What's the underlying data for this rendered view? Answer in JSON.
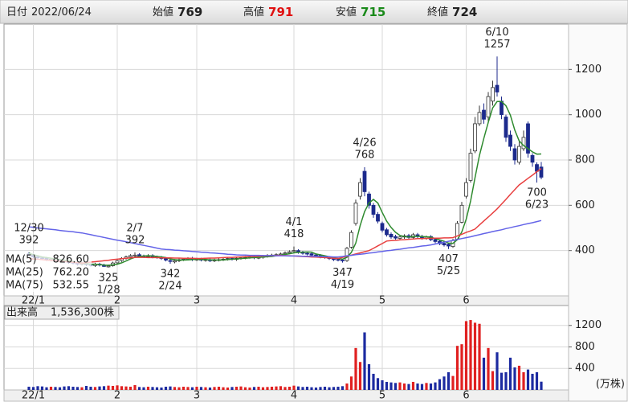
{
  "chart_data": [
    {
      "type": "candlestick",
      "info": [
        {
          "label": "日付",
          "value": "2022/06/24",
          "color": "#222222"
        },
        {
          "label": "始値",
          "value": 769,
          "color": "#222222"
        },
        {
          "label": "高値",
          "value": 791,
          "color": "#e01010"
        },
        {
          "label": "安値",
          "value": 715,
          "color": "#1a8a1a"
        },
        {
          "label": "終値",
          "value": 724,
          "color": "#222222"
        }
      ],
      "categories": [
        null,
        "22/1",
        null,
        null,
        null,
        null,
        null,
        null,
        null,
        null,
        null,
        null,
        null,
        null,
        null,
        null,
        null,
        null,
        null,
        null,
        "2",
        null,
        null,
        null,
        null,
        null,
        null,
        null,
        null,
        null,
        null,
        null,
        null,
        null,
        null,
        null,
        null,
        null,
        "3",
        null,
        null,
        null,
        null,
        null,
        null,
        null,
        null,
        null,
        null,
        null,
        null,
        null,
        null,
        null,
        null,
        null,
        null,
        null,
        null,
        null,
        "4",
        null,
        null,
        null,
        null,
        null,
        null,
        null,
        null,
        null,
        null,
        null,
        null,
        null,
        null,
        null,
        null,
        null,
        null,
        null,
        "5",
        null,
        null,
        null,
        null,
        null,
        null,
        null,
        null,
        null,
        null,
        null,
        null,
        null,
        null,
        null,
        null,
        null,
        null,
        "6",
        null,
        null,
        null,
        null,
        null,
        null,
        null,
        null,
        null,
        null,
        null,
        null,
        null,
        null,
        null,
        null,
        null
      ],
      "open": [
        386,
        380,
        372,
        368,
        366,
        358,
        362,
        358,
        355,
        350,
        348,
        345,
        340,
        343,
        338,
        334,
        340,
        336,
        328,
        333,
        346,
        356,
        366,
        372,
        378,
        382,
        376,
        373,
        378,
        372,
        370,
        364,
        356,
        350,
        355,
        360,
        362,
        366,
        360,
        362,
        357,
        360,
        355,
        358,
        360,
        362,
        366,
        361,
        366,
        368,
        370,
        373,
        368,
        370,
        375,
        378,
        380,
        383,
        386,
        390,
        396,
        400,
        393,
        388,
        386,
        381,
        378,
        373,
        370,
        366,
        361,
        358,
        356,
        415,
        520,
        640,
        750,
        650,
        600,
        560,
        520,
        492,
        472,
        462,
        454,
        460,
        466,
        458,
        470,
        463,
        454,
        462,
        449,
        441,
        432,
        428,
        418,
        450,
        525,
        640,
        710,
        840,
        960,
        1020,
        990,
        1060,
        1130,
        1060,
        990,
        910,
        850,
        790,
        850,
        960,
        820,
        780,
        769
      ],
      "high": [
        392,
        386,
        378,
        374,
        372,
        368,
        368,
        364,
        361,
        356,
        354,
        351,
        349,
        349,
        344,
        346,
        346,
        342,
        338,
        351,
        361,
        371,
        378,
        384,
        392,
        388,
        382,
        384,
        384,
        378,
        376,
        370,
        362,
        361,
        366,
        368,
        371,
        372,
        368,
        368,
        366,
        366,
        364,
        366,
        368,
        371,
        372,
        372,
        374,
        376,
        378,
        379,
        376,
        381,
        384,
        386,
        388,
        391,
        396,
        401,
        418,
        406,
        399,
        394,
        392,
        387,
        384,
        379,
        376,
        372,
        367,
        364,
        416,
        490,
        625,
        720,
        768,
        660,
        610,
        570,
        528,
        500,
        480,
        470,
        468,
        472,
        474,
        478,
        478,
        470,
        466,
        468,
        455,
        447,
        438,
        434,
        452,
        530,
        615,
        720,
        850,
        990,
        1040,
        1050,
        1100,
        1150,
        1257,
        1080,
        1000,
        930,
        870,
        880,
        930,
        970,
        830,
        790,
        791
      ],
      "low": [
        374,
        366,
        362,
        360,
        354,
        352,
        352,
        349,
        344,
        342,
        339,
        334,
        334,
        332,
        329,
        328,
        330,
        328,
        325,
        329,
        340,
        350,
        360,
        366,
        372,
        370,
        368,
        367,
        366,
        364,
        359,
        352,
        342,
        344,
        349,
        354,
        356,
        354,
        354,
        352,
        351,
        349,
        349,
        352,
        354,
        356,
        356,
        355,
        360,
        362,
        364,
        362,
        362,
        364,
        369,
        372,
        374,
        377,
        380,
        384,
        390,
        386,
        382,
        379,
        374,
        372,
        366,
        364,
        359,
        354,
        352,
        347,
        350,
        408,
        510,
        625,
        640,
        585,
        545,
        520,
        480,
        462,
        452,
        448,
        448,
        452,
        450,
        452,
        455,
        448,
        448,
        442,
        432,
        424,
        418,
        407,
        412,
        445,
        520,
        630,
        700,
        830,
        950,
        960,
        970,
        1040,
        1080,
        980,
        880,
        840,
        780,
        780,
        840,
        810,
        770,
        700,
        715
      ],
      "close": [
        380,
        372,
        368,
        366,
        360,
        362,
        358,
        355,
        350,
        348,
        345,
        340,
        343,
        338,
        335,
        340,
        336,
        330,
        332,
        345,
        355,
        365,
        372,
        378,
        380,
        376,
        374,
        378,
        372,
        370,
        365,
        358,
        352,
        355,
        360,
        362,
        365,
        360,
        362,
        358,
        360,
        355,
        358,
        360,
        362,
        365,
        362,
        366,
        368,
        370,
        372,
        368,
        370,
        375,
        378,
        380,
        382,
        385,
        390,
        395,
        400,
        392,
        388,
        385,
        380,
        378,
        372,
        370,
        365,
        360,
        358,
        355,
        410,
        480,
        610,
        700,
        660,
        600,
        560,
        530,
        490,
        470,
        460,
        455,
        460,
        465,
        458,
        470,
        462,
        455,
        460,
        448,
        440,
        430,
        425,
        420,
        445,
        520,
        600,
        700,
        830,
        960,
        1010,
        980,
        1080,
        1120,
        1100,
        1000,
        900,
        860,
        800,
        860,
        900,
        830,
        790,
        750,
        724
      ],
      "up_color": "#ffffff",
      "down_color": "#1c2a8c",
      "edge_color": "#333333",
      "series": [
        {
          "name": "MA(5)",
          "color": "#2e8a2e",
          "legend_value": "826.60",
          "values": [
            388,
            382,
            377,
            372,
            369,
            366,
            363,
            360,
            357,
            355,
            351,
            347,
            345,
            343,
            340,
            340,
            338,
            336,
            335,
            337,
            340,
            346,
            354,
            363,
            370,
            374,
            376,
            377,
            376,
            374,
            372,
            369,
            363,
            360,
            358,
            358,
            359,
            360,
            362,
            361,
            361,
            359,
            359,
            358,
            359,
            360,
            362,
            363,
            365,
            366,
            368,
            369,
            370,
            371,
            373,
            374,
            377,
            380,
            383,
            386,
            390,
            392,
            393,
            394,
            393,
            385,
            381,
            377,
            373,
            369,
            365,
            362,
            370,
            392,
            433,
            511,
            572,
            610,
            626,
            610,
            568,
            530,
            502,
            481,
            467,
            462,
            460,
            462,
            463,
            462,
            461,
            459,
            453,
            447,
            441,
            433,
            432,
            448,
            482,
            538,
            619,
            722,
            820,
            896,
            966,
            1030,
            1058,
            1058,
            1040,
            998,
            932,
            884,
            864,
            850,
            836,
            826,
            826.6
          ]
        },
        {
          "name": "MA(25)",
          "color": "#e84040",
          "legend_value": "762.20",
          "values": [
            365,
            363,
            362,
            360,
            358,
            357,
            355,
            353,
            352,
            350,
            348,
            347,
            345,
            347,
            349,
            351,
            353,
            355,
            357,
            360,
            362,
            364,
            366,
            368,
            370,
            370,
            370,
            369,
            369,
            369,
            368,
            368,
            368,
            367,
            367,
            366,
            366,
            366,
            365,
            365,
            366,
            367,
            367,
            368,
            369,
            370,
            370,
            371,
            372,
            373,
            374,
            374,
            375,
            376,
            377,
            377,
            378,
            379,
            378,
            377,
            376,
            375,
            374,
            373,
            372,
            371,
            370,
            369,
            368,
            366,
            365,
            370,
            375,
            380,
            385,
            390,
            395,
            400,
            410,
            421,
            431,
            442,
            444,
            445,
            447,
            448,
            450,
            451,
            453,
            453,
            454,
            454,
            455,
            455,
            456,
            456,
            457,
            465,
            472,
            480,
            487,
            495,
            513,
            531,
            548,
            566,
            584,
            605,
            626,
            648,
            669,
            690,
            704,
            719,
            733,
            748,
            762.2
          ]
        },
        {
          "name": "MA(75)",
          "color": "#6464e8",
          "legend_value": "532.55",
          "values": [
            505,
            503,
            500,
            498,
            496,
            494,
            492,
            489,
            487,
            485,
            483,
            480,
            478,
            474,
            470,
            466,
            462,
            458,
            454,
            450,
            446,
            443,
            439,
            435,
            431,
            427,
            423,
            419,
            415,
            411,
            407,
            405,
            404,
            402,
            401,
            399,
            398,
            396,
            395,
            393,
            392,
            390,
            389,
            387,
            386,
            384,
            383,
            381,
            380,
            380,
            379,
            379,
            379,
            378,
            378,
            378,
            377,
            377,
            377,
            376,
            376,
            376,
            375,
            375,
            375,
            374,
            374,
            373,
            373,
            372,
            372,
            374,
            377,
            379,
            382,
            384,
            386,
            389,
            391,
            394,
            396,
            399,
            401,
            404,
            406,
            409,
            412,
            414,
            417,
            420,
            422,
            425,
            429,
            433,
            437,
            441,
            445,
            449,
            453,
            457,
            461,
            466,
            470,
            475,
            479,
            484,
            488,
            492,
            497,
            501,
            506,
            510,
            515,
            519,
            523,
            528,
            532.55
          ]
        }
      ],
      "annotations": [
        {
          "date": "12/30",
          "value": 392,
          "position": "above"
        },
        {
          "date": "1/28",
          "value": 325,
          "position": "below"
        },
        {
          "date": "2/7",
          "value": 392,
          "position": "above"
        },
        {
          "date": "2/24",
          "value": 342,
          "position": "below"
        },
        {
          "date": "4/1",
          "value": 418,
          "position": "above"
        },
        {
          "date": "4/19",
          "value": 347,
          "position": "below"
        },
        {
          "date": "4/26",
          "value": 768,
          "position": "above"
        },
        {
          "date": "5/25",
          "value": 407,
          "position": "below"
        },
        {
          "date": "6/10",
          "value": 1257,
          "position": "above"
        },
        {
          "date": "6/23",
          "value": 700,
          "position": "below"
        }
      ],
      "ylim": [
        200,
        1400
      ],
      "yticks": [
        400,
        600,
        800,
        1000,
        1200
      ],
      "grid": true
    },
    {
      "type": "bar",
      "title": "出来高",
      "title_value": "1,536,300株",
      "unit": "(万株)",
      "values": [
        60,
        55,
        70,
        65,
        50,
        60,
        55,
        50,
        65,
        70,
        60,
        55,
        50,
        75,
        60,
        55,
        65,
        70,
        80,
        75,
        85,
        70,
        65,
        60,
        90,
        55,
        50,
        60,
        55,
        50,
        45,
        60,
        65,
        55,
        50,
        60,
        55,
        50,
        60,
        55,
        50,
        45,
        55,
        60,
        50,
        45,
        55,
        60,
        65,
        50,
        45,
        55,
        60,
        50,
        55,
        60,
        65,
        70,
        55,
        60,
        80,
        65,
        55,
        60,
        50,
        45,
        55,
        60,
        50,
        55,
        60,
        70,
        120,
        250,
        780,
        520,
        1070,
        480,
        300,
        220,
        180,
        150,
        140,
        130,
        140,
        120,
        110,
        150,
        120,
        110,
        130,
        120,
        140,
        200,
        250,
        330,
        260,
        820,
        850,
        1280,
        1300,
        1250,
        1230,
        600,
        780,
        350,
        700,
        320,
        330,
        600,
        420,
        450,
        330,
        380,
        300,
        330,
        154
      ],
      "up_color": "#e02020",
      "down_color": "#1c2aa0",
      "ylim": [
        0,
        1570
      ],
      "yticks": [
        400,
        800,
        1200
      ],
      "grid": true
    }
  ]
}
